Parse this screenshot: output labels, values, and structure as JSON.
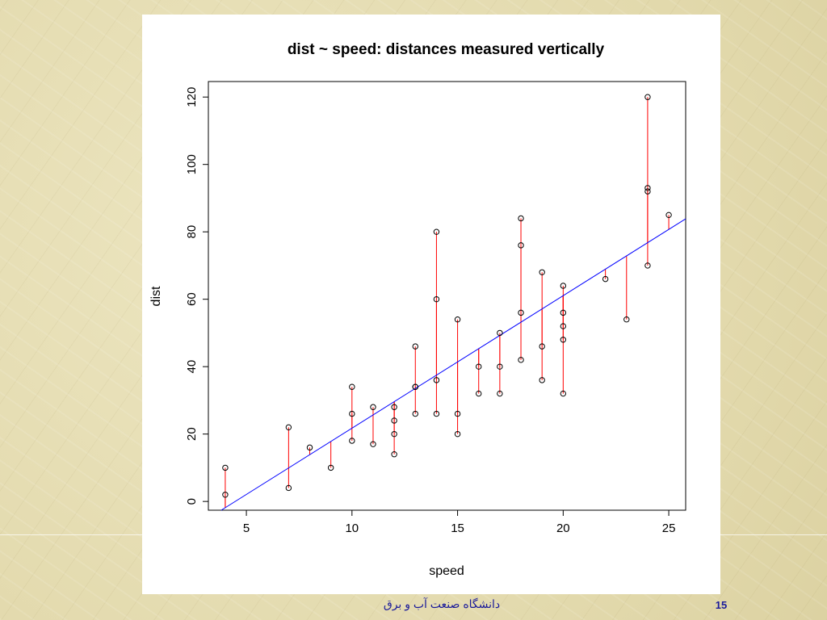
{
  "slide": {
    "footer_text": "دانشگاه صنعت آب و برق",
    "page_number": "15"
  },
  "colors": {
    "points": "#000000",
    "fit_line": "#0000ff",
    "residuals": "#ff0000"
  },
  "chart_data": {
    "type": "scatter",
    "title": "dist ~ speed: distances measured vertically",
    "xlabel": "speed",
    "ylabel": "dist",
    "xlim": [
      3.2,
      25.8
    ],
    "ylim": [
      -2.6,
      124.6
    ],
    "xticks": [
      5,
      10,
      15,
      20,
      25
    ],
    "yticks": [
      0,
      20,
      40,
      60,
      80,
      100,
      120
    ],
    "grid": false,
    "fit": {
      "intercept": -17.579,
      "slope": 3.932
    },
    "points": [
      {
        "speed": 4,
        "dist": 2
      },
      {
        "speed": 4,
        "dist": 10
      },
      {
        "speed": 7,
        "dist": 4
      },
      {
        "speed": 7,
        "dist": 22
      },
      {
        "speed": 8,
        "dist": 16
      },
      {
        "speed": 9,
        "dist": 10
      },
      {
        "speed": 10,
        "dist": 18
      },
      {
        "speed": 10,
        "dist": 26
      },
      {
        "speed": 10,
        "dist": 34
      },
      {
        "speed": 11,
        "dist": 17
      },
      {
        "speed": 11,
        "dist": 28
      },
      {
        "speed": 12,
        "dist": 14
      },
      {
        "speed": 12,
        "dist": 20
      },
      {
        "speed": 12,
        "dist": 24
      },
      {
        "speed": 12,
        "dist": 28
      },
      {
        "speed": 13,
        "dist": 26
      },
      {
        "speed": 13,
        "dist": 34
      },
      {
        "speed": 13,
        "dist": 34
      },
      {
        "speed": 13,
        "dist": 46
      },
      {
        "speed": 14,
        "dist": 26
      },
      {
        "speed": 14,
        "dist": 36
      },
      {
        "speed": 14,
        "dist": 60
      },
      {
        "speed": 14,
        "dist": 80
      },
      {
        "speed": 15,
        "dist": 20
      },
      {
        "speed": 15,
        "dist": 26
      },
      {
        "speed": 15,
        "dist": 54
      },
      {
        "speed": 16,
        "dist": 32
      },
      {
        "speed": 16,
        "dist": 40
      },
      {
        "speed": 17,
        "dist": 32
      },
      {
        "speed": 17,
        "dist": 40
      },
      {
        "speed": 17,
        "dist": 50
      },
      {
        "speed": 18,
        "dist": 42
      },
      {
        "speed": 18,
        "dist": 56
      },
      {
        "speed": 18,
        "dist": 76
      },
      {
        "speed": 18,
        "dist": 84
      },
      {
        "speed": 19,
        "dist": 36
      },
      {
        "speed": 19,
        "dist": 46
      },
      {
        "speed": 19,
        "dist": 68
      },
      {
        "speed": 20,
        "dist": 32
      },
      {
        "speed": 20,
        "dist": 48
      },
      {
        "speed": 20,
        "dist": 52
      },
      {
        "speed": 20,
        "dist": 56
      },
      {
        "speed": 20,
        "dist": 64
      },
      {
        "speed": 22,
        "dist": 66
      },
      {
        "speed": 23,
        "dist": 54
      },
      {
        "speed": 24,
        "dist": 70
      },
      {
        "speed": 24,
        "dist": 92
      },
      {
        "speed": 24,
        "dist": 93
      },
      {
        "speed": 24,
        "dist": 120
      },
      {
        "speed": 25,
        "dist": 85
      }
    ]
  }
}
